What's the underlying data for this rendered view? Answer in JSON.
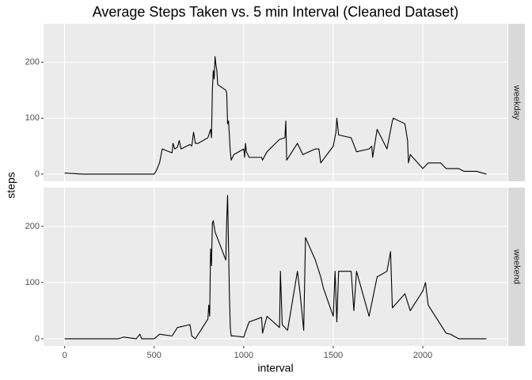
{
  "chart_data": {
    "type": "line",
    "title": "Average Steps Taken vs. 5 min Interval (Cleaned Dataset)",
    "x_label": "interval",
    "y_label": "steps",
    "xlim": [
      -117.75,
      2472.75
    ],
    "xticks": [
      0,
      500,
      1000,
      1500,
      2000
    ],
    "ylim": [
      -12.8,
      268.8
    ],
    "yticks": [
      0,
      100,
      200
    ],
    "grid": true,
    "series": [
      {
        "name": "weekday",
        "color": "#000000",
        "x": [
          0,
          100,
          200,
          300,
          400,
          500,
          510,
          530,
          545,
          600,
          605,
          615,
          630,
          640,
          650,
          700,
          710,
          720,
          730,
          745,
          800,
          815,
          820,
          825,
          830,
          835,
          840,
          845,
          850,
          855,
          900,
          905,
          910,
          915,
          920,
          925,
          930,
          945,
          1000,
          1005,
          1010,
          1015,
          1030,
          1100,
          1105,
          1130,
          1200,
          1230,
          1235,
          1240,
          1300,
          1330,
          1400,
          1420,
          1430,
          1500,
          1515,
          1520,
          1530,
          1600,
          1630,
          1700,
          1715,
          1720,
          1745,
          1800,
          1830,
          1835,
          1900,
          1915,
          1920,
          1930,
          2000,
          2030,
          2100,
          2130,
          2200,
          2230,
          2300,
          2355
        ],
        "values": [
          2,
          0,
          0,
          0,
          0,
          0,
          5,
          20,
          45,
          38,
          55,
          45,
          48,
          60,
          45,
          53,
          50,
          75,
          55,
          55,
          65,
          80,
          65,
          150,
          185,
          170,
          210,
          195,
          185,
          160,
          150,
          145,
          90,
          95,
          70,
          40,
          25,
          35,
          45,
          30,
          55,
          40,
          30,
          30,
          25,
          40,
          62,
          65,
          95,
          25,
          55,
          35,
          45,
          45,
          20,
          50,
          75,
          100,
          70,
          65,
          40,
          45,
          50,
          30,
          80,
          45,
          95,
          100,
          90,
          60,
          20,
          35,
          10,
          20,
          20,
          10,
          10,
          5,
          5,
          0
        ]
      },
      {
        "name": "weekend",
        "color": "#000000",
        "x": [
          0,
          100,
          200,
          300,
          330,
          400,
          420,
          430,
          500,
          530,
          600,
          630,
          700,
          710,
          730,
          800,
          805,
          810,
          815,
          820,
          825,
          830,
          835,
          840,
          900,
          905,
          910,
          915,
          920,
          925,
          930,
          945,
          1000,
          1030,
          1100,
          1105,
          1130,
          1200,
          1205,
          1215,
          1245,
          1300,
          1315,
          1335,
          1345,
          1400,
          1430,
          1445,
          1500,
          1510,
          1520,
          1530,
          1600,
          1615,
          1630,
          1700,
          1745,
          1800,
          1820,
          1830,
          1900,
          1930,
          2000,
          2015,
          2030,
          2100,
          2130,
          2155,
          2200,
          2355
        ],
        "values": [
          0,
          0,
          0,
          0,
          3,
          0,
          8,
          0,
          0,
          8,
          5,
          20,
          25,
          5,
          0,
          35,
          60,
          40,
          160,
          130,
          205,
          210,
          200,
          190,
          140,
          210,
          255,
          170,
          80,
          20,
          5,
          5,
          3,
          30,
          38,
          10,
          40,
          20,
          120,
          25,
          15,
          120,
          80,
          15,
          180,
          140,
          110,
          90,
          40,
          120,
          30,
          120,
          120,
          50,
          120,
          40,
          110,
          120,
          155,
          55,
          80,
          50,
          85,
          100,
          60,
          25,
          10,
          8,
          0,
          0
        ]
      }
    ]
  }
}
